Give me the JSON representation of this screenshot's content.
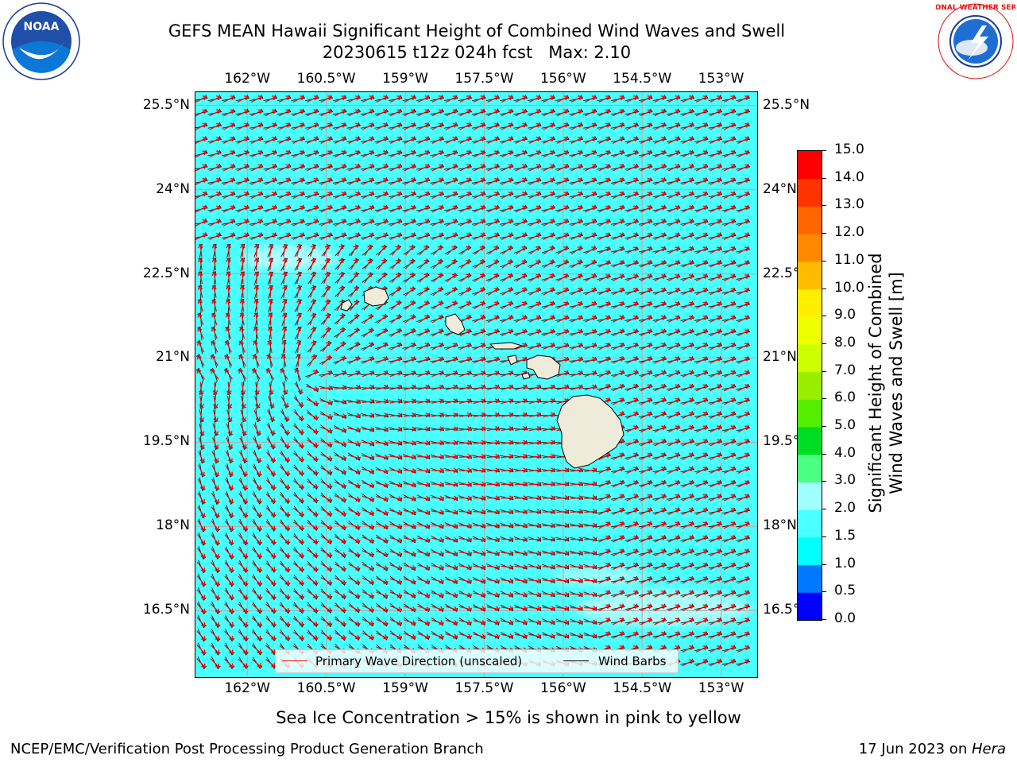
{
  "header": {
    "title_line1": "GEFS MEAN Hawaii Significant Height of Combined Wind Waves and Swell",
    "title_line2": "20230615 t12z 024h fcst   Max: 2.10"
  },
  "logos": {
    "noaa_text": "NOAA",
    "noaa_ring_text": "NATIONAL OCEANIC AND ATMOSPHERIC ADMINISTRATION · U.S. DEPARTMENT OF COMMERCE",
    "nws_ring_text": "NATIONAL WEATHER SERVICE"
  },
  "map": {
    "lon_labels": [
      "162°W",
      "160.5°W",
      "159°W",
      "157.5°W",
      "156°W",
      "154.5°W",
      "153°W"
    ],
    "lat_labels": [
      "25.5°N",
      "24°N",
      "22.5°N",
      "21°N",
      "19.5°N",
      "18°N",
      "16.5°N"
    ],
    "lon_values": [
      -162,
      -160.5,
      -159,
      -157.5,
      -156,
      -154.5,
      -153
    ],
    "lat_values": [
      25.5,
      24,
      22.5,
      21,
      19.5,
      18,
      16.5
    ],
    "extent": {
      "lon_min": -163,
      "lon_max": -152.3,
      "lat_min": 15.3,
      "lat_max": 25.75
    },
    "ocean_color": "#49ffff",
    "land_color": "#efebda"
  },
  "legend": {
    "wave_label": "Primary Wave Direction (unscaled)",
    "barb_label": "Wind Barbs",
    "wave_color": "#ff0000",
    "barb_color": "#000000"
  },
  "colorbar": {
    "label_line1": "Significant Height of Combined",
    "label_line2": "Wind Waves and Swell [m]",
    "ticks": [
      "0.0",
      "0.5",
      "1.0",
      "1.5",
      "2.0",
      "3.0",
      "4.0",
      "5.0",
      "6.0",
      "7.0",
      "8.0",
      "9.0",
      "10.0",
      "11.0",
      "12.0",
      "13.0",
      "14.0",
      "15.0"
    ],
    "colors": [
      "#0000ff",
      "#0078ff",
      "#00ffff",
      "#49ffff",
      "#a2ffff",
      "#4dff80",
      "#00dd22",
      "#55ee00",
      "#99ee00",
      "#ccff00",
      "#eeff00",
      "#ffee00",
      "#ffbb00",
      "#ff8800",
      "#ff6600",
      "#ff3300",
      "#ff0000"
    ]
  },
  "footer": {
    "note": "Sea Ice Concentration > 15% is shown in pink to yellow",
    "left": "NCEP/EMC/Verification Post Processing Product Generation Branch",
    "right_date": "17 Jun 2023 on ",
    "right_host": "Hera"
  }
}
